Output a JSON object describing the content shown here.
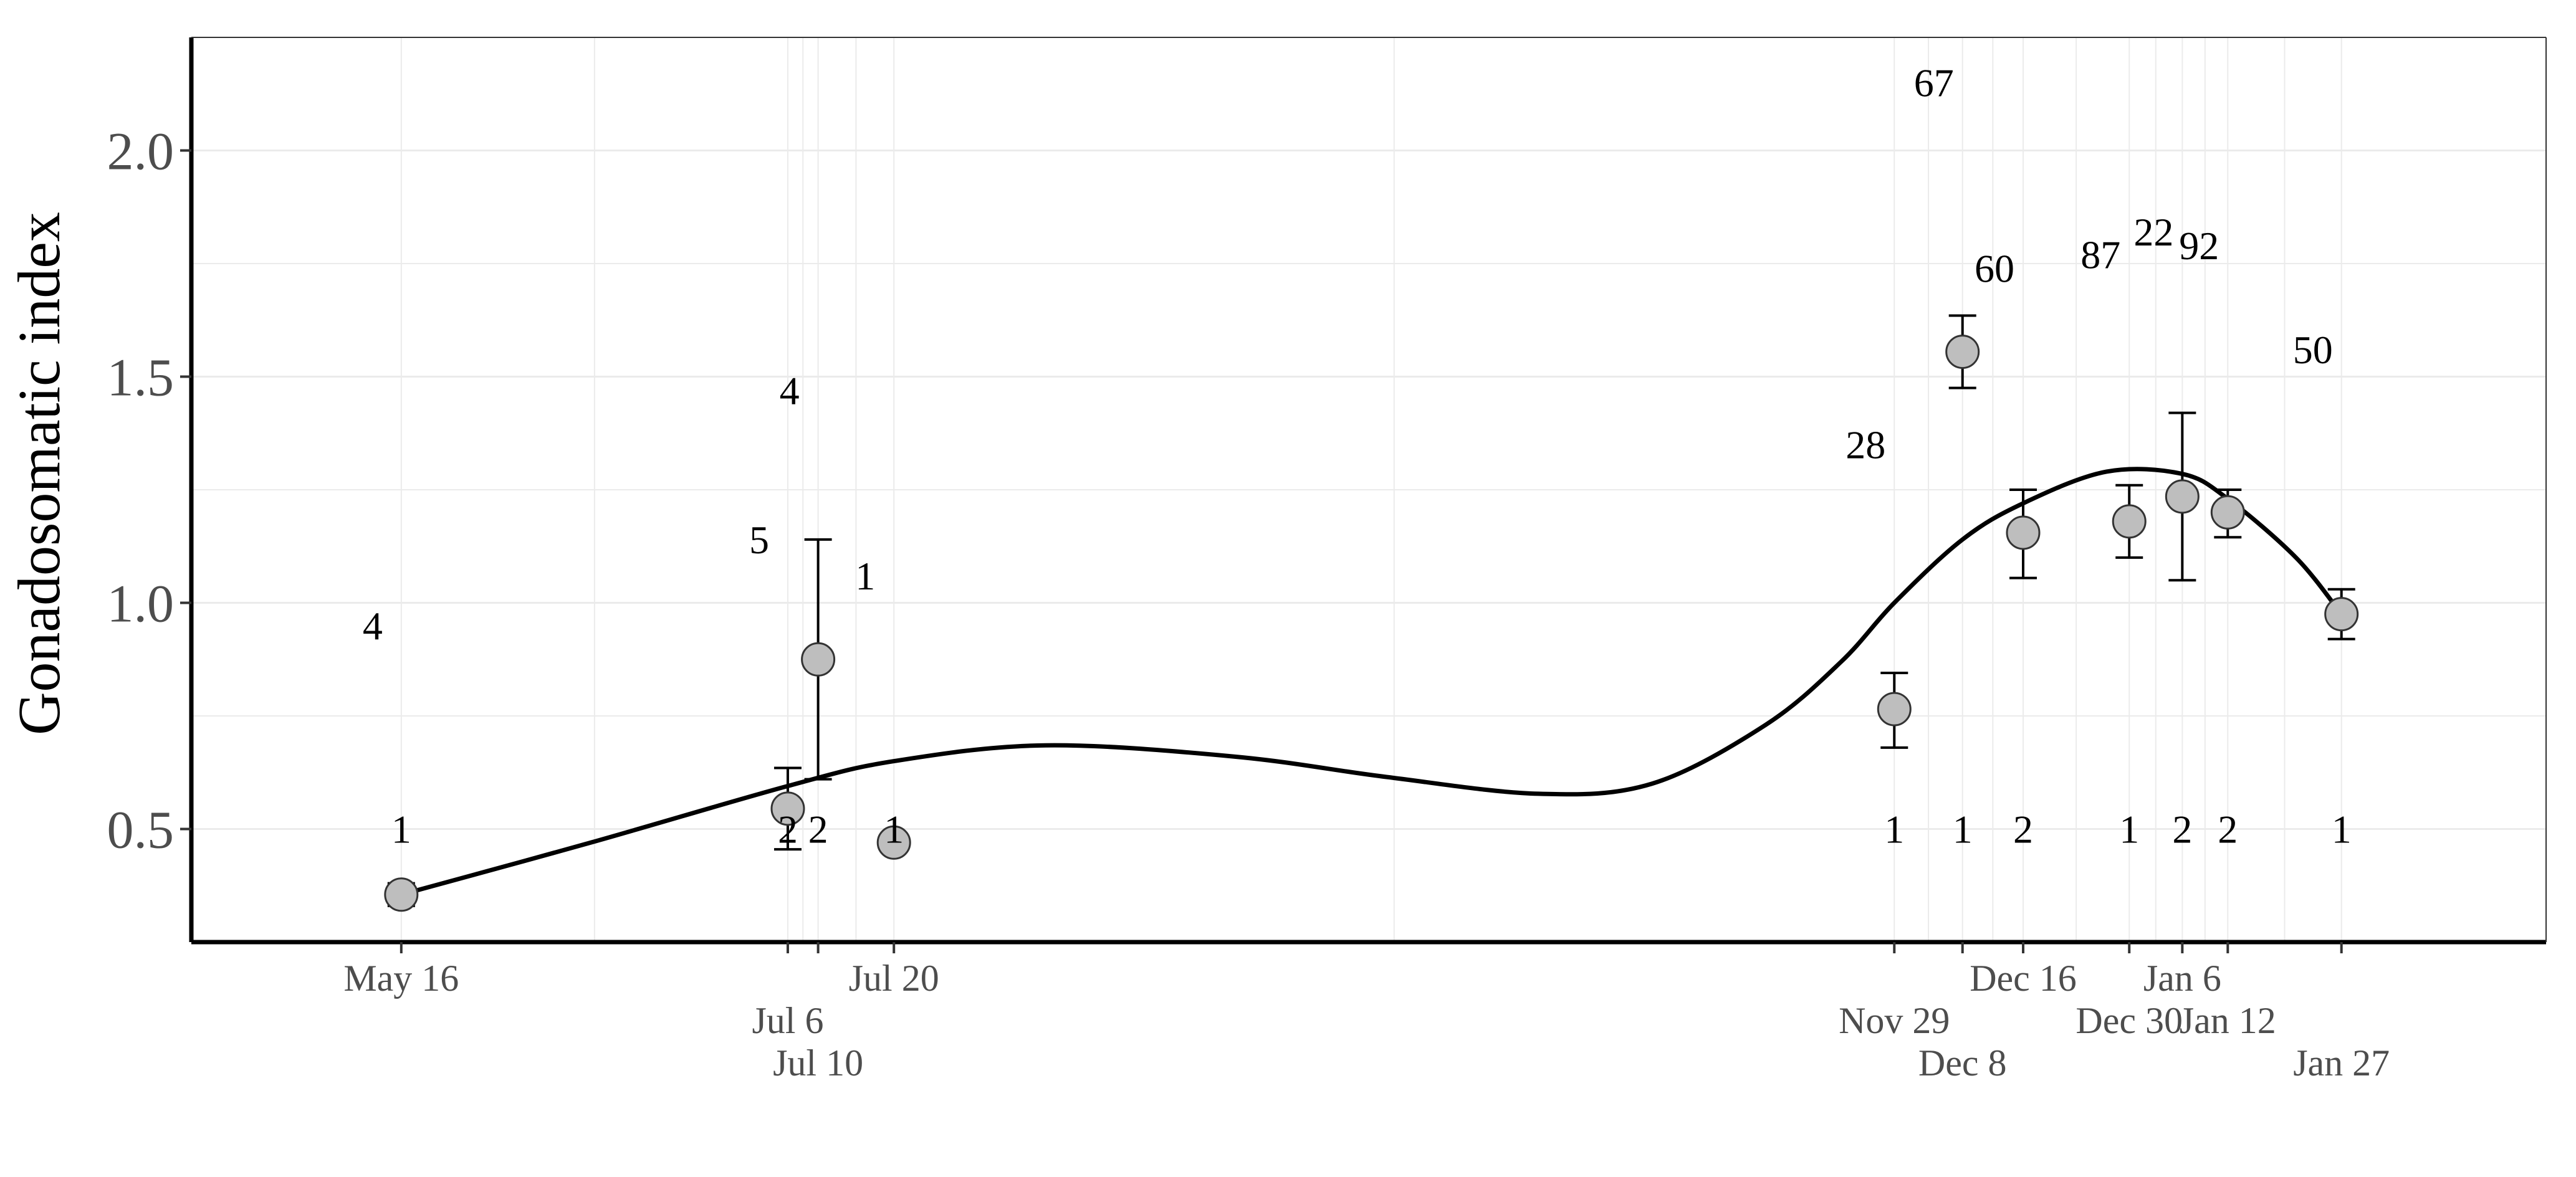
{
  "chart_data": {
    "type": "scatter",
    "title": "",
    "xlabel": "",
    "ylabel": "Gonadosomatic index",
    "ylim": [
      0.25,
      2.25
    ],
    "y_ticks": [
      "0.5",
      "1.0",
      "1.5",
      "2.0"
    ],
    "grid": true,
    "legend": "none",
    "x_ticks": [
      {
        "label": "May 16",
        "day": 0,
        "row": 0
      },
      {
        "label": "Jul 6",
        "day": 51,
        "row": 1
      },
      {
        "label": "Jul 10",
        "day": 55,
        "row": 2
      },
      {
        "label": "Jul 20",
        "day": 65,
        "row": 0
      },
      {
        "label": "Nov 29",
        "day": 197,
        "row": 1
      },
      {
        "label": "Dec 8",
        "day": 206,
        "row": 2
      },
      {
        "label": "Dec 16",
        "day": 214,
        "row": 0
      },
      {
        "label": "Dec 30",
        "day": 228,
        "row": 1
      },
      {
        "label": "Jan 6",
        "day": 235,
        "row": 0
      },
      {
        "label": "Jan 12",
        "day": 241,
        "row": 1
      },
      {
        "label": "Jan 27",
        "day": 256,
        "row": 2
      }
    ],
    "points": [
      {
        "date": "May 16",
        "day": 0,
        "y": 0.355,
        "err_low": 0.33,
        "err_high": 0.38,
        "bottom_label": "1",
        "top_label": "4",
        "top_label_y": 0.95
      },
      {
        "date": "Jul 6",
        "day": 51,
        "y": 0.545,
        "err_low": 0.455,
        "err_high": 0.635,
        "bottom_label": "2",
        "top_label": "5",
        "top_label_y": 1.14
      },
      {
        "date": "Jul 10",
        "day": 55,
        "y": 0.875,
        "err_low": 0.61,
        "err_high": 1.14,
        "bottom_label": "2",
        "top_label": "4",
        "top_label_y": 1.47
      },
      {
        "date": "Jul 20",
        "day": 65,
        "y": 0.47,
        "err_low": null,
        "err_high": null,
        "bottom_label": "1",
        "top_label": "1",
        "top_label_y": 1.06
      },
      {
        "date": "Nov 29",
        "day": 197,
        "y": 0.765,
        "err_low": 0.68,
        "err_high": 0.845,
        "bottom_label": "1",
        "top_label": "28",
        "top_label_y": 1.35
      },
      {
        "date": "Dec 8",
        "day": 206,
        "y": 1.555,
        "err_low": 1.475,
        "err_high": 1.635,
        "bottom_label": "1",
        "top_label": "67",
        "top_label_y": 2.15
      },
      {
        "date": "Dec 16",
        "day": 214,
        "y": 1.155,
        "err_low": 1.055,
        "err_high": 1.25,
        "bottom_label": "2",
        "top_label": "60",
        "top_label_y": 1.74
      },
      {
        "date": "Dec 30",
        "day": 228,
        "y": 1.18,
        "err_low": 1.1,
        "err_high": 1.26,
        "bottom_label": "1",
        "top_label": "87",
        "top_label_y": 1.77
      },
      {
        "date": "Jan 6",
        "day": 235,
        "y": 1.235,
        "err_low": 1.05,
        "err_high": 1.42,
        "bottom_label": "2",
        "top_label": "22",
        "top_label_y": 1.82
      },
      {
        "date": "Jan 12",
        "day": 241,
        "y": 1.2,
        "err_low": 1.145,
        "err_high": 1.25,
        "bottom_label": "2",
        "top_label": "92",
        "top_label_y": 1.79
      },
      {
        "date": "Jan 27",
        "day": 256,
        "y": 0.975,
        "err_low": 0.92,
        "err_high": 1.03,
        "bottom_label": "1",
        "top_label": "50",
        "top_label_y": 1.56
      }
    ],
    "smooth_curve": {
      "x_day": [
        0,
        25,
        51,
        65,
        85,
        110,
        130,
        150,
        165,
        180,
        190,
        197,
        206,
        214,
        225,
        235,
        241,
        250,
        256
      ],
      "y": [
        0.355,
        0.47,
        0.595,
        0.65,
        0.685,
        0.66,
        0.615,
        0.578,
        0.6,
        0.73,
        0.87,
        1.0,
        1.14,
        1.22,
        1.29,
        1.285,
        1.23,
        1.1,
        0.975
      ]
    },
    "colors": {
      "point_fill": "#bebebe",
      "point_stroke": "#333333",
      "curve": "#000000",
      "grid": "#ebebeb",
      "axis": "#000000"
    }
  }
}
